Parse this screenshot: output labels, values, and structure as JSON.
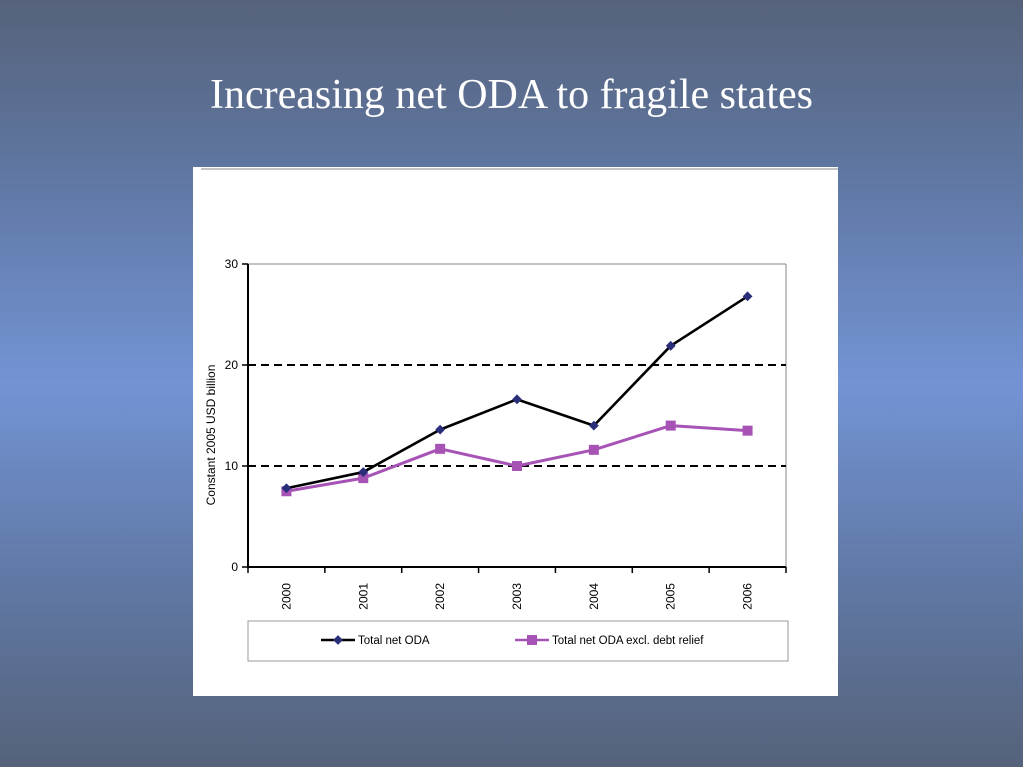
{
  "title": "Increasing net ODA to fragile states",
  "chart_data": {
    "type": "line",
    "title": "",
    "xlabel": "",
    "ylabel": "Constant 2005 USD billion",
    "categories": [
      "2000",
      "2001",
      "2002",
      "2003",
      "2004",
      "2005",
      "2006"
    ],
    "ylim": [
      0,
      30
    ],
    "yticks": [
      "0",
      "10",
      "20",
      "30"
    ],
    "gridlines": "dashed horizontal at 10 and 20",
    "legend_position": "bottom",
    "series": [
      {
        "name": "Total net ODA",
        "values": [
          7.8,
          9.4,
          13.6,
          16.6,
          14.0,
          21.9,
          26.8
        ],
        "color": "#000000",
        "marker": "diamond",
        "marker_color": "#2b2f7a"
      },
      {
        "name": "Total net ODA excl. debt relief",
        "values": [
          7.5,
          8.8,
          11.7,
          10.0,
          11.6,
          14.0,
          13.5
        ],
        "color": "#a653b5",
        "marker": "square",
        "marker_color": "#a653b5"
      }
    ]
  }
}
